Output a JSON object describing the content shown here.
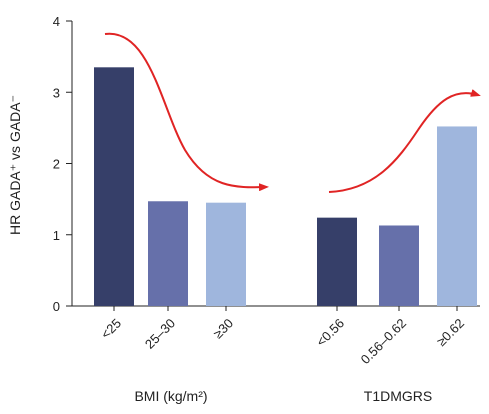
{
  "chart_data": {
    "type": "bar",
    "title": "",
    "ylabel": "HR GADA⁺ vs GADA⁻",
    "ylim": [
      0,
      4
    ],
    "yticks": [
      0,
      1,
      2,
      3,
      4
    ],
    "grid": false,
    "groups": [
      {
        "label": "BMI (kg/m²)",
        "categories": [
          "<25",
          "25–30",
          "≥30"
        ],
        "values": [
          3.35,
          1.47,
          1.45
        ],
        "colors": [
          "#363f69",
          "#6670aa",
          "#9fb6dd"
        ],
        "trend_arrow": "downward"
      },
      {
        "label": "T1DMGRS",
        "categories": [
          "<0.56",
          "0.56–0.62",
          "≥0.62"
        ],
        "values": [
          1.24,
          1.13,
          2.52
        ],
        "colors": [
          "#363f69",
          "#6670aa",
          "#9fb6dd"
        ],
        "trend_arrow": "upward"
      }
    ],
    "arrow_color": "#e02424"
  }
}
